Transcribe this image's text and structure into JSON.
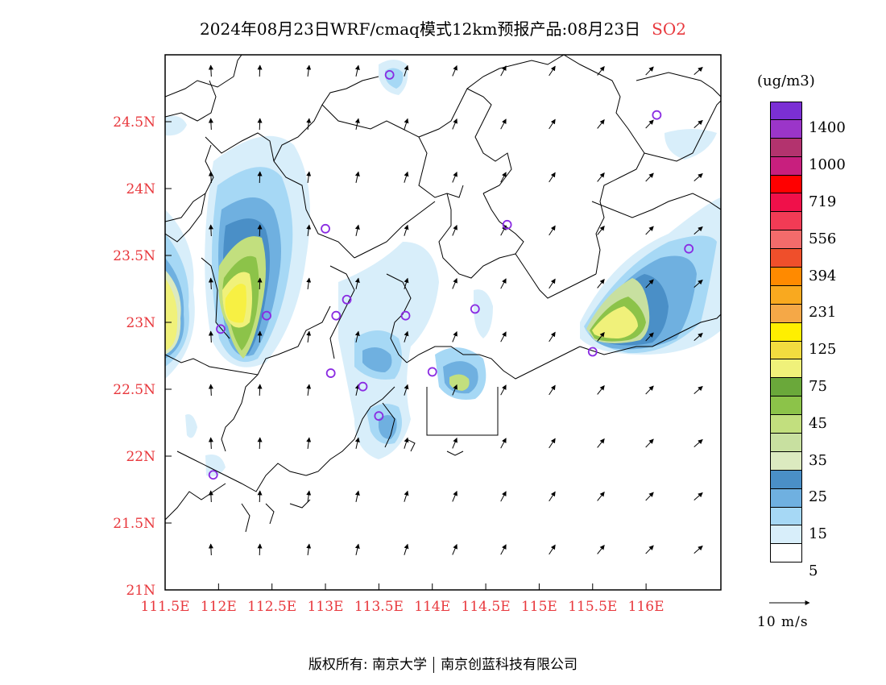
{
  "title": {
    "main": "2024年08月23日WRF/cmaq模式12km预报产品:08月23日",
    "pollutant": "SO2"
  },
  "axes": {
    "lat_labels": [
      "24.5N",
      "24N",
      "23.5N",
      "23N",
      "22.5N",
      "22N",
      "21.5N",
      "21N"
    ],
    "lat_values": [
      24.5,
      24.0,
      23.5,
      23.0,
      22.5,
      22.0,
      21.5,
      21.0
    ],
    "lon_labels": [
      "111.5E",
      "112E",
      "112.5E",
      "113E",
      "113.5E",
      "114E",
      "114.5E",
      "115E",
      "115.5E",
      "116E"
    ],
    "lon_values": [
      111.5,
      112.0,
      112.5,
      113.0,
      113.5,
      114.0,
      114.5,
      115.0,
      115.5,
      116.0
    ],
    "lon_range": [
      111.5,
      116.7
    ],
    "lat_range": [
      21.0,
      25.0
    ]
  },
  "colorbar": {
    "unit": "(ug/m3)",
    "colors": [
      "#7b2fd4",
      "#9b35c9",
      "#b3336e",
      "#c81f7e",
      "#ff0000",
      "#f0104a",
      "#f23b55",
      "#f36b6b",
      "#ef4f2b",
      "#ff8a00",
      "#f9a91f",
      "#f5a847",
      "#ffef00",
      "#f2dc3f",
      "#f0f17a",
      "#6aa83a",
      "#8cc349",
      "#c2df7e",
      "#c8e0a0",
      "#dceac0",
      "#4a8fc7",
      "#6fb0e0",
      "#a6d8f5",
      "#d8eefa",
      "#ffffff"
    ],
    "labels": [
      "1400",
      "1000",
      "719",
      "556",
      "394",
      "231",
      "125",
      "75",
      "45",
      "35",
      "25",
      "15",
      "5"
    ]
  },
  "stations": [
    {
      "lon": 113.6,
      "lat": 24.85
    },
    {
      "lon": 116.1,
      "lat": 24.55
    },
    {
      "lon": 113.0,
      "lat": 23.7
    },
    {
      "lon": 114.7,
      "lat": 23.73
    },
    {
      "lon": 116.4,
      "lat": 23.55
    },
    {
      "lon": 113.2,
      "lat": 23.17
    },
    {
      "lon": 112.45,
      "lat": 23.05
    },
    {
      "lon": 113.1,
      "lat": 23.05
    },
    {
      "lon": 113.75,
      "lat": 23.05
    },
    {
      "lon": 114.4,
      "lat": 23.1
    },
    {
      "lon": 112.02,
      "lat": 22.95
    },
    {
      "lon": 115.5,
      "lat": 22.78
    },
    {
      "lon": 113.05,
      "lat": 22.62
    },
    {
      "lon": 113.35,
      "lat": 22.52
    },
    {
      "lon": 114.0,
      "lat": 22.63
    },
    {
      "lon": 113.5,
      "lat": 22.3
    },
    {
      "lon": 111.95,
      "lat": 21.86
    }
  ],
  "wind_reference": "10 m/s",
  "copyright": {
    "left": "版权所有: 南京大学",
    "right": "南京创蓝科技有限公司"
  }
}
